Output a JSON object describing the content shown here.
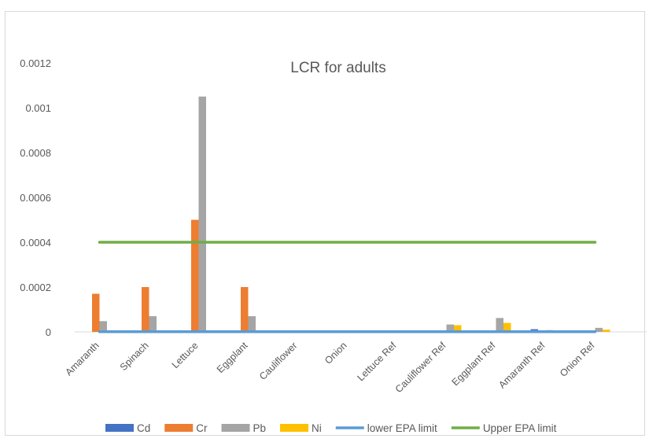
{
  "chart_data": {
    "type": "bar",
    "title": "LCR for adults",
    "xlabel": "",
    "ylabel": "",
    "categories": [
      "Amaranth",
      "Spinach",
      "Lettuce",
      "Eggplant",
      "Cauliflower",
      "Onion",
      "Lettuce Ref",
      "Cauliflower Ref",
      "Eggplant Ref",
      "Amaranth Ref",
      "Onion Ref"
    ],
    "ylim": [
      0,
      0.0012
    ],
    "yticks": [
      "0",
      "0.0002",
      "0.0004",
      "0.0006",
      "0.0008",
      "0.001",
      "0.0012"
    ],
    "grid": false,
    "legend_position": "bottom",
    "series": [
      {
        "name": "Cd",
        "type": "bar",
        "color": "#4472c4",
        "values": [
          0,
          0,
          0,
          0,
          0,
          0,
          0,
          0,
          0,
          1.2e-05,
          0
        ]
      },
      {
        "name": "Cr",
        "type": "bar",
        "color": "#ed7d31",
        "values": [
          0.00017,
          0.0002,
          0.0005,
          0.0002,
          0,
          0,
          0,
          0,
          0,
          0,
          0
        ]
      },
      {
        "name": "Pb",
        "type": "bar",
        "color": "#a5a5a5",
        "values": [
          4.8e-05,
          7e-05,
          0.00105,
          7e-05,
          0,
          0,
          0,
          3.3e-05,
          6.2e-05,
          8e-06,
          1.8e-05
        ]
      },
      {
        "name": "Ni",
        "type": "bar",
        "color": "#ffc000",
        "values": [
          0,
          0,
          0,
          0,
          0,
          0,
          0,
          3e-05,
          4e-05,
          0,
          1e-05
        ]
      },
      {
        "name": "lower EPA limit",
        "type": "line",
        "color": "#5b9bd5",
        "values": [
          1e-06,
          1e-06,
          1e-06,
          1e-06,
          1e-06,
          1e-06,
          1e-06,
          1e-06,
          1e-06,
          1e-06,
          1e-06
        ]
      },
      {
        "name": "Upper EPA limit",
        "type": "line",
        "color": "#70ad47",
        "values": [
          0.0004,
          0.0004,
          0.0004,
          0.0004,
          0.0004,
          0.0004,
          0.0004,
          0.0004,
          0.0004,
          0.0004,
          0.0004
        ]
      }
    ]
  }
}
